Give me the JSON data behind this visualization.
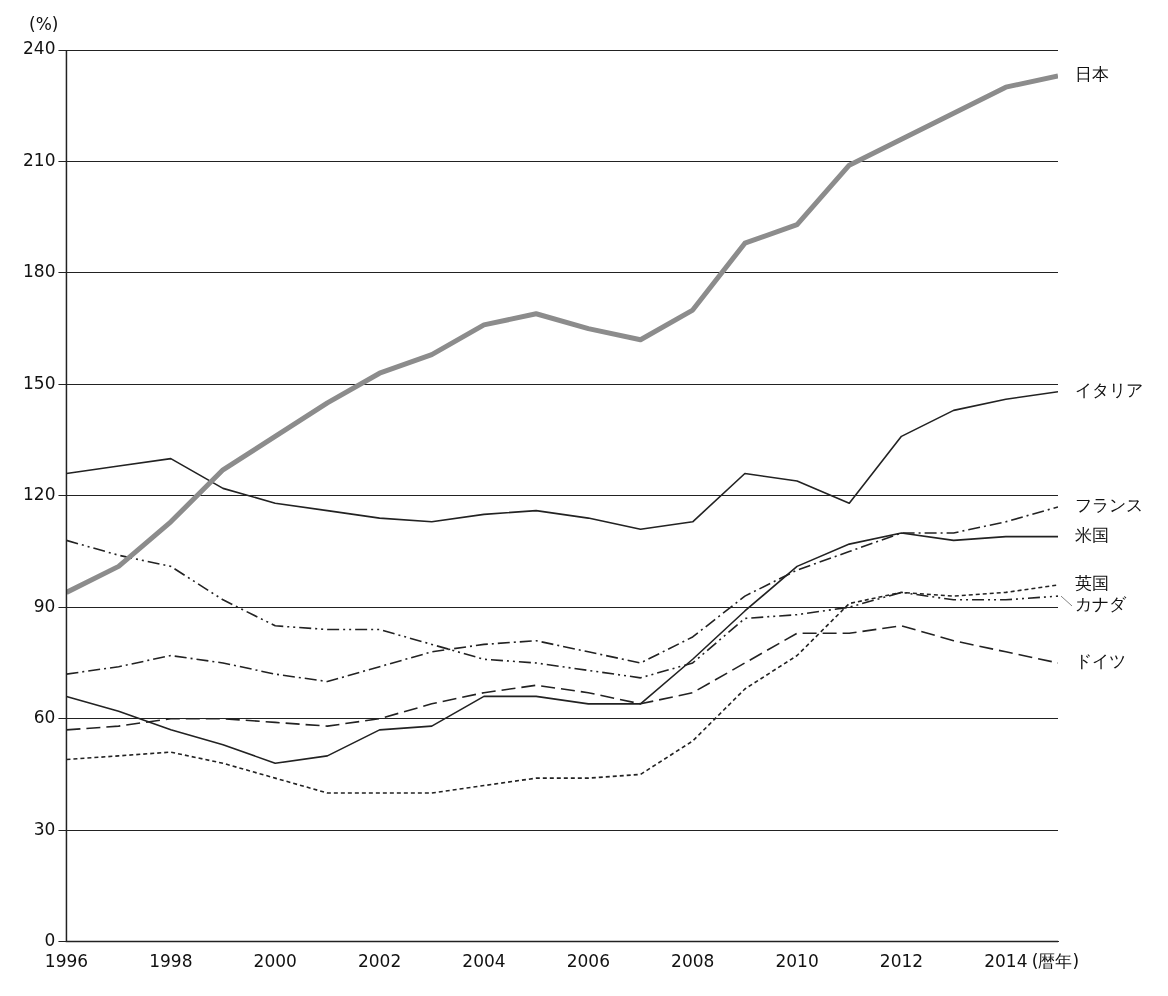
{
  "chart_data": {
    "type": "line",
    "xlabel": "(暦年)",
    "ylabel": "(%)",
    "x": [
      1996,
      1997,
      1998,
      1999,
      2000,
      2001,
      2002,
      2003,
      2004,
      2005,
      2006,
      2007,
      2008,
      2009,
      2010,
      2011,
      2012,
      2013,
      2014,
      2015
    ],
    "xlim": [
      1996,
      2015
    ],
    "xticks": [
      1996,
      1998,
      2000,
      2002,
      2004,
      2006,
      2008,
      2010,
      2012,
      2014
    ],
    "ylim": [
      0,
      240
    ],
    "yticks": [
      0,
      30,
      60,
      90,
      120,
      150,
      180,
      210,
      240
    ],
    "grid": "y",
    "marker": "none",
    "legend": false,
    "series": [
      {
        "name": "日本",
        "color": "#8c8c8c",
        "line_style": "solid",
        "values": [
          94,
          101,
          113,
          127,
          136,
          145,
          153,
          158,
          166,
          169,
          165,
          162,
          170,
          188,
          193,
          209,
          216,
          223,
          230,
          233
        ]
      },
      {
        "name": "イタリア",
        "color": "#222222",
        "line_style": "solid",
        "values": [
          126,
          128,
          130,
          122,
          118,
          116,
          114,
          113,
          115,
          116,
          114,
          111,
          113,
          126,
          124,
          118,
          136,
          143,
          146,
          148
        ]
      },
      {
        "name": "フランス",
        "color": "#222222",
        "line_style": "dashdot",
        "values": [
          72,
          74,
          77,
          75,
          72,
          70,
          74,
          78,
          80,
          81,
          78,
          75,
          82,
          93,
          100,
          105,
          110,
          110,
          113,
          117
        ]
      },
      {
        "name": "米国",
        "color": "#222222",
        "line_style": "solid",
        "values": [
          66,
          62,
          57,
          53,
          48,
          50,
          57,
          58,
          66,
          66,
          64,
          64,
          76,
          89,
          101,
          107,
          110,
          108,
          109,
          109
        ]
      },
      {
        "name": "英国",
        "color": "#222222",
        "line_style": "dotted",
        "values": [
          49,
          50,
          51,
          48,
          44,
          40,
          40,
          40,
          42,
          44,
          44,
          45,
          54,
          68,
          77,
          91,
          94,
          93,
          94,
          96
        ]
      },
      {
        "name": "カナダ",
        "color": "#222222",
        "line_style": "dashdotdot",
        "values": [
          108,
          104,
          101,
          92,
          85,
          84,
          84,
          80,
          76,
          75,
          73,
          71,
          75,
          87,
          88,
          90,
          94,
          92,
          92,
          93
        ]
      },
      {
        "name": "ドイツ",
        "color": "#222222",
        "line_style": "dashed",
        "values": [
          57,
          58,
          60,
          60,
          59,
          58,
          60,
          64,
          67,
          69,
          67,
          64,
          67,
          75,
          83,
          83,
          85,
          81,
          78,
          75
        ]
      }
    ]
  }
}
